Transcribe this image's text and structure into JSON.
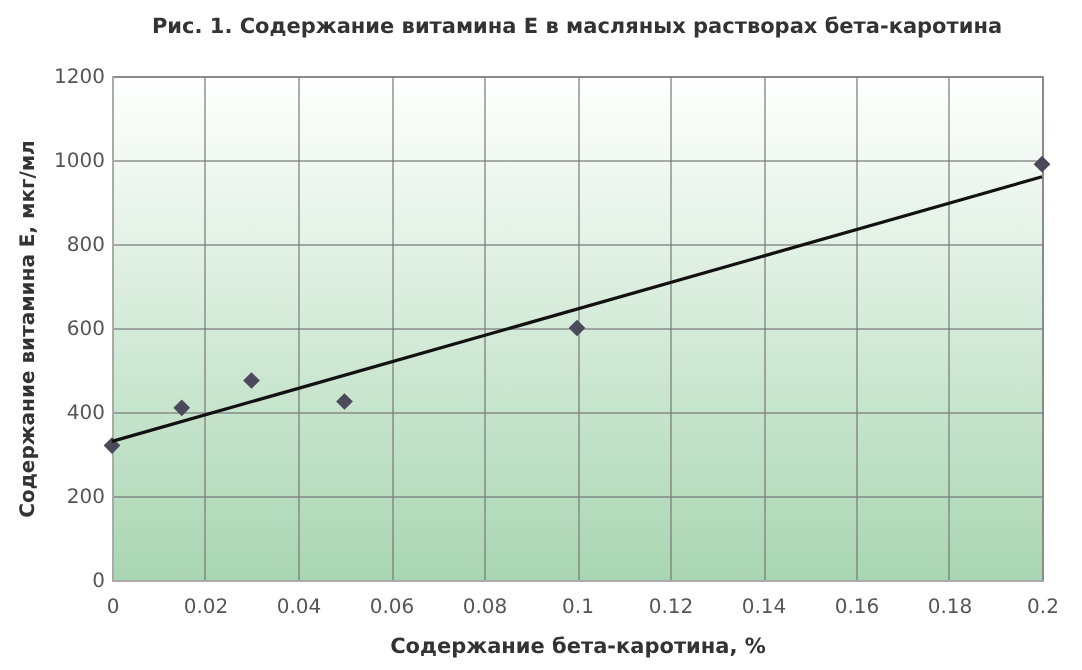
{
  "chart_data": {
    "type": "scatter",
    "title": "Рис. 1. Содержание витамина Е в масляных растворах бета-каротина",
    "xlabel": "Содержание бета-каротина, %",
    "ylabel": "Содержание витамина Е, мкг/мл",
    "series": [
      {
        "color": "#4a4a5a",
        "marker": "diamond",
        "x": [
          0,
          0.015,
          0.03,
          0.05,
          0.1,
          0.2
        ],
        "values": [
          320,
          410,
          475,
          425,
          600,
          990
        ]
      },
      {
        "type": "line",
        "color": "#111111",
        "x": [
          0,
          0.2
        ],
        "values": [
          330,
          960
        ]
      }
    ],
    "xlim": [
      0,
      0.2
    ],
    "xticks": [
      0,
      0.02,
      0.04,
      0.06,
      0.08,
      0.1,
      0.12,
      0.14,
      0.16,
      0.18,
      0.2
    ],
    "ylim": [
      0,
      1200
    ],
    "yticks": [
      0,
      200,
      400,
      600,
      800,
      1000,
      1200
    ],
    "grid": true
  }
}
